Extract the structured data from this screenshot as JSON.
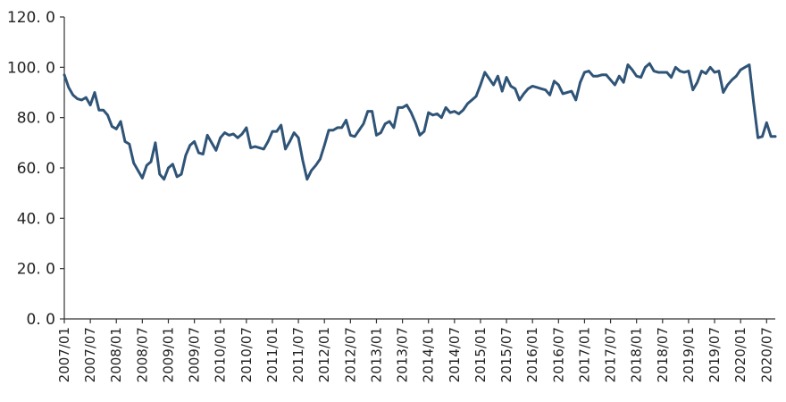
{
  "chart_data": {
    "type": "line",
    "title": "",
    "xlabel": "",
    "ylabel": "",
    "ylim": [
      0,
      120
    ],
    "yticks": [
      "0. 0",
      "20. 0",
      "40. 0",
      "60. 0",
      "80. 0",
      "100. 0",
      "120. 0"
    ],
    "x_tick_labels": [
      "2007/01",
      "2007/07",
      "2008/01",
      "2008/07",
      "2009/01",
      "2009/07",
      "2010/01",
      "2010/07",
      "2011/01",
      "2011/07",
      "2012/01",
      "2012/07",
      "2013/01",
      "2013/07",
      "2014/01",
      "2014/07",
      "2015/01",
      "2015/07",
      "2016/01",
      "2016/07",
      "2017/01",
      "2017/07",
      "2018/01",
      "2018/07",
      "2019/01",
      "2019/07",
      "2020/01",
      "2020/07"
    ],
    "x_range": [
      "2007/01",
      "2020/09"
    ],
    "grid": false,
    "legend": "none",
    "colors": {
      "line": "#2f5477",
      "axis": "#333333"
    },
    "series": [
      {
        "x": [
          "2007/01",
          "2007/02",
          "2007/03",
          "2007/04",
          "2007/05",
          "2007/06",
          "2007/07",
          "2007/08",
          "2007/09",
          "2007/10",
          "2007/11",
          "2007/12",
          "2008/01",
          "2008/02",
          "2008/03",
          "2008/04",
          "2008/05",
          "2008/06",
          "2008/07",
          "2008/08",
          "2008/09",
          "2008/10",
          "2008/11",
          "2008/12",
          "2009/01",
          "2009/02",
          "2009/03",
          "2009/04",
          "2009/05",
          "2009/06",
          "2009/07",
          "2009/08",
          "2009/09",
          "2009/10",
          "2009/11",
          "2009/12",
          "2010/01",
          "2010/02",
          "2010/03",
          "2010/04",
          "2010/05",
          "2010/06",
          "2010/07",
          "2010/08",
          "2010/09",
          "2010/10",
          "2010/11",
          "2010/12",
          "2011/01",
          "2011/02",
          "2011/03",
          "2011/04",
          "2011/05",
          "2011/06",
          "2011/07",
          "2011/08",
          "2011/09",
          "2011/10",
          "2011/11",
          "2011/12",
          "2012/01",
          "2012/02",
          "2012/03",
          "2012/04",
          "2012/05",
          "2012/06",
          "2012/07",
          "2012/08",
          "2012/09",
          "2012/10",
          "2012/11",
          "2012/12",
          "2013/01",
          "2013/02",
          "2013/03",
          "2013/04",
          "2013/05",
          "2013/06",
          "2013/07",
          "2013/08",
          "2013/09",
          "2013/10",
          "2013/11",
          "2013/12",
          "2014/01",
          "2014/02",
          "2014/03",
          "2014/04",
          "2014/05",
          "2014/06",
          "2014/07",
          "2014/08",
          "2014/09",
          "2014/10",
          "2014/11",
          "2014/12",
          "2015/01",
          "2015/02",
          "2015/03",
          "2015/04",
          "2015/05",
          "2015/06",
          "2015/07",
          "2015/08",
          "2015/09",
          "2015/10",
          "2015/11",
          "2015/12",
          "2016/01",
          "2016/02",
          "2016/03",
          "2016/04",
          "2016/05",
          "2016/06",
          "2016/07",
          "2016/08",
          "2016/09",
          "2016/10",
          "2016/11",
          "2016/12",
          "2017/01",
          "2017/02",
          "2017/03",
          "2017/04",
          "2017/05",
          "2017/06",
          "2017/07",
          "2017/08",
          "2017/09",
          "2017/10",
          "2017/11",
          "2017/12",
          "2018/01",
          "2018/02",
          "2018/03",
          "2018/04",
          "2018/05",
          "2018/06",
          "2018/07",
          "2018/08",
          "2018/09",
          "2018/10",
          "2018/11",
          "2018/12",
          "2019/01",
          "2019/02",
          "2019/03",
          "2019/04",
          "2019/05",
          "2019/06",
          "2019/07",
          "2019/08",
          "2019/09",
          "2019/10",
          "2019/11",
          "2019/12",
          "2020/01",
          "2020/02",
          "2020/03",
          "2020/04",
          "2020/05",
          "2020/06",
          "2020/07",
          "2020/08",
          "2020/09"
        ],
        "values": [
          97.0,
          92.0,
          89.0,
          87.5,
          87.0,
          88.0,
          85.0,
          90.0,
          83.0,
          83.0,
          81.0,
          76.5,
          75.5,
          78.5,
          70.5,
          69.5,
          62.0,
          59.0,
          56.0,
          61.0,
          62.5,
          70.0,
          57.5,
          55.5,
          60.0,
          61.5,
          56.5,
          57.5,
          65.0,
          69.0,
          70.5,
          66.0,
          65.5,
          73.0,
          70.0,
          67.0,
          72.0,
          74.0,
          73.0,
          73.5,
          72.0,
          73.5,
          76.0,
          68.0,
          68.5,
          68.0,
          67.5,
          70.5,
          74.5,
          74.5,
          77.0,
          67.5,
          70.5,
          74.0,
          72.0,
          63.0,
          55.5,
          59.0,
          61.0,
          63.5,
          69.0,
          75.0,
          75.0,
          76.0,
          76.0,
          79.0,
          73.0,
          72.5,
          75.0,
          77.5,
          82.5,
          82.5,
          73.0,
          74.0,
          77.5,
          78.5,
          76.0,
          84.0,
          84.0,
          85.0,
          82.0,
          78.0,
          73.0,
          74.5,
          82.0,
          81.0,
          81.5,
          80.0,
          84.0,
          82.0,
          82.5,
          81.5,
          83.0,
          85.5,
          87.0,
          88.5,
          93.0,
          98.0,
          95.5,
          93.0,
          96.5,
          90.5,
          96.0,
          92.5,
          91.5,
          87.0,
          89.5,
          91.5,
          92.5,
          92.0,
          91.5,
          91.0,
          89.0,
          94.5,
          93.0,
          89.5,
          90.0,
          90.5,
          87.0,
          94.0,
          98.0,
          98.5,
          96.5,
          96.5,
          97.0,
          97.0,
          95.0,
          93.0,
          96.5,
          94.0,
          101.0,
          99.0,
          96.5,
          96.0,
          100.0,
          101.5,
          98.5,
          98.0,
          98.0,
          98.0,
          96.0,
          100.0,
          98.5,
          98.0,
          98.5,
          91.0,
          94.0,
          98.5,
          97.5,
          100.0,
          98.0,
          98.5,
          90.0,
          93.0,
          95.0,
          96.5,
          99.0,
          100.0,
          101.0,
          86.0,
          72.0,
          72.5,
          78.0,
          72.5,
          72.5
        ]
      }
    ]
  }
}
